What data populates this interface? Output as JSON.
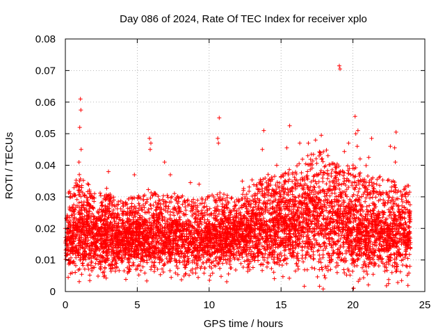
{
  "chart_data": {
    "type": "scatter",
    "title": "Day 086 of 2024, Rate Of TEC Index for receiver xplo",
    "xlabel": "GPS time / hours",
    "ylabel": "ROTI / TECUs",
    "xlim": [
      0,
      25
    ],
    "ylim": [
      0,
      0.08
    ],
    "x_ticks": [
      0,
      5,
      10,
      15,
      20,
      25
    ],
    "x_tick_labels": [
      "0",
      "5",
      "10",
      "15",
      "20",
      "25"
    ],
    "y_ticks": [
      0,
      0.01,
      0.02,
      0.03,
      0.04,
      0.05,
      0.06,
      0.07,
      0.08
    ],
    "y_tick_labels": [
      "0",
      "0.01",
      "0.02",
      "0.03",
      "0.04",
      "0.05",
      "0.06",
      "0.07",
      "0.08"
    ],
    "grid": true,
    "marker": "+",
    "marker_color": "#ff0000",
    "observation_span_hours": [
      0,
      24
    ],
    "envelope": {
      "x": [
        0,
        1,
        2,
        3,
        4,
        5,
        6,
        7,
        8,
        9,
        10,
        11,
        12,
        13,
        14,
        15,
        16,
        17,
        18,
        19,
        20,
        21,
        22,
        23,
        24
      ],
      "typical_low": [
        0.009,
        0.008,
        0.009,
        0.009,
        0.009,
        0.009,
        0.009,
        0.009,
        0.009,
        0.009,
        0.009,
        0.01,
        0.01,
        0.01,
        0.01,
        0.011,
        0.011,
        0.011,
        0.011,
        0.01,
        0.009,
        0.008,
        0.008,
        0.008,
        0.009
      ],
      "typical_high": [
        0.025,
        0.03,
        0.026,
        0.025,
        0.024,
        0.025,
        0.026,
        0.025,
        0.025,
        0.024,
        0.025,
        0.026,
        0.026,
        0.028,
        0.03,
        0.031,
        0.033,
        0.035,
        0.036,
        0.033,
        0.032,
        0.03,
        0.029,
        0.028,
        0.027
      ]
    },
    "outliers": [
      {
        "x": 1.05,
        "y": 0.061
      },
      {
        "x": 1.08,
        "y": 0.0575
      },
      {
        "x": 1.0,
        "y": 0.052
      },
      {
        "x": 1.1,
        "y": 0.045
      },
      {
        "x": 0.95,
        "y": 0.041
      },
      {
        "x": 0.2,
        "y": 0.0045
      },
      {
        "x": 5.85,
        "y": 0.0485
      },
      {
        "x": 5.95,
        "y": 0.047
      },
      {
        "x": 5.9,
        "y": 0.045
      },
      {
        "x": 6.9,
        "y": 0.041
      },
      {
        "x": 10.7,
        "y": 0.055
      },
      {
        "x": 10.6,
        "y": 0.0485
      },
      {
        "x": 10.65,
        "y": 0.047
      },
      {
        "x": 9.3,
        "y": 0.034
      },
      {
        "x": 13.8,
        "y": 0.051
      },
      {
        "x": 13.7,
        "y": 0.045
      },
      {
        "x": 15.6,
        "y": 0.0525
      },
      {
        "x": 15.4,
        "y": 0.0455
      },
      {
        "x": 16.3,
        "y": 0.047
      },
      {
        "x": 16.9,
        "y": 0.047
      },
      {
        "x": 17.4,
        "y": 0.048
      },
      {
        "x": 17.8,
        "y": 0.0495
      },
      {
        "x": 17.7,
        "y": 0.044
      },
      {
        "x": 19.05,
        "y": 0.0715
      },
      {
        "x": 19.1,
        "y": 0.0705
      },
      {
        "x": 19.7,
        "y": 0.047
      },
      {
        "x": 20.15,
        "y": 0.0555
      },
      {
        "x": 20.35,
        "y": 0.051
      },
      {
        "x": 20.2,
        "y": 0.05
      },
      {
        "x": 20.5,
        "y": 0.042
      },
      {
        "x": 20.3,
        "y": 0.046
      },
      {
        "x": 21.3,
        "y": 0.0485
      },
      {
        "x": 21.1,
        "y": 0.0425
      },
      {
        "x": 22.6,
        "y": 0.046
      },
      {
        "x": 22.9,
        "y": 0.0455
      },
      {
        "x": 23.0,
        "y": 0.0505
      },
      {
        "x": 22.95,
        "y": 0.041
      },
      {
        "x": 12.3,
        "y": 0.035
      },
      {
        "x": 3.0,
        "y": 0.038
      },
      {
        "x": 4.8,
        "y": 0.037
      },
      {
        "x": 7.3,
        "y": 0.037
      },
      {
        "x": 8.7,
        "y": 0.0345
      },
      {
        "x": 14.7,
        "y": 0.04
      },
      {
        "x": 2.6,
        "y": 0.006
      },
      {
        "x": 18.9,
        "y": 0.006
      },
      {
        "x": 21.0,
        "y": 0.0055
      },
      {
        "x": 16.0,
        "y": 0.0065
      }
    ],
    "density_points_estimated": 6000,
    "random_seed": 86
  }
}
